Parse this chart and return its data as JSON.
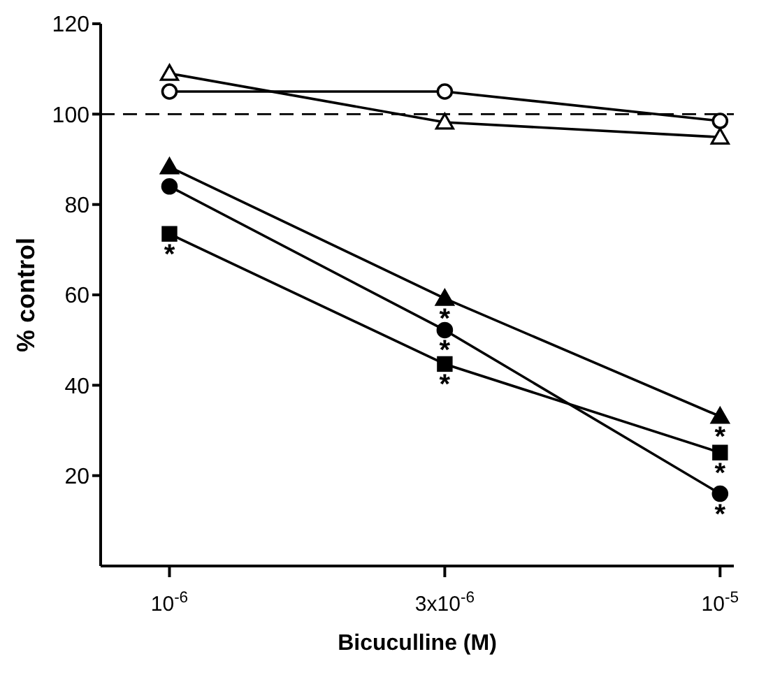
{
  "chart_data": {
    "type": "line",
    "xlabel": "Bicuculline (M)",
    "ylabel": "% control",
    "categories": [
      "10$^{-6}$",
      "3x10$^{-6}$",
      "10$^{-5}$"
    ],
    "series": [
      {
        "color": "#000000",
        "marker": "triangle",
        "values": [
          109,
          98.2,
          94.9
        ]
      },
      {
        "color": "#000000",
        "marker": "circle",
        "values": [
          105,
          105,
          98.5
        ]
      },
      {
        "color": "#000000",
        "marker": "triangle",
        "values": [
          88.3,
          59.2,
          33.1
        ]
      },
      {
        "color": "#000000",
        "marker": "circle",
        "values": [
          84,
          52.2,
          16
        ]
      },
      {
        "color": "#000000",
        "marker": "square",
        "values": [
          73.5,
          44.7,
          25.1
        ]
      }
    ],
    "ylim": [
      0,
      120
    ],
    "yticks": [
      20,
      40,
      60,
      80,
      100,
      120
    ],
    "ref_lines": [
      {
        "axis": "y",
        "value": 100,
        "line_style": "dashed",
        "color": "#000000"
      }
    ],
    "annotations": [
      {
        "text": "*",
        "x": "10$^{-6}$",
        "y": 73.5
      },
      {
        "text": "*",
        "x": "3x10$^{-6}$",
        "y": 59.2
      },
      {
        "text": "*",
        "x": "3x10$^{-6}$",
        "y": 52.2
      },
      {
        "text": "*",
        "x": "3x10$^{-6}$",
        "y": 44.7
      },
      {
        "text": "*",
        "x": "10$^{-5}$",
        "y": 33.1
      },
      {
        "text": "*",
        "x": "10$^{-5}$",
        "y": 25.1
      },
      {
        "text": "*",
        "x": "10$^{-5}$",
        "y": 16
      }
    ],
    "legend": false,
    "grid": false
  }
}
